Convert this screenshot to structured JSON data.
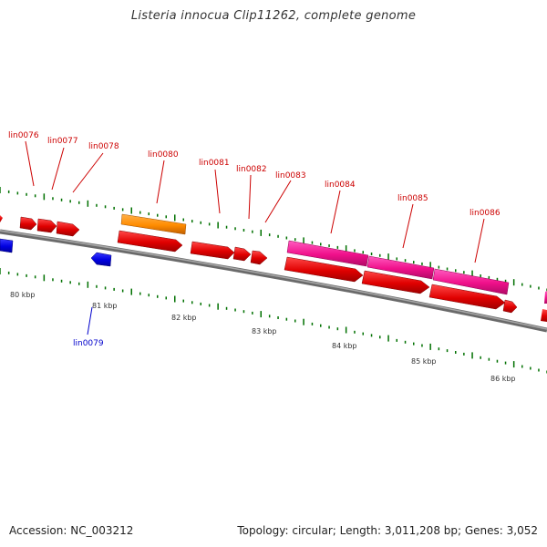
{
  "title": "Listeria innocua Clip11262, complete genome",
  "footer": {
    "accession": "Accession: NC_003212",
    "summary": "Topology: circular; Length: 3,011,208 bp; Genes: 3,052"
  },
  "colors": {
    "backbone": "#808080",
    "tick": "#007000",
    "forward_gene": "#ff0000",
    "reverse_gene": "#0000ff",
    "highlight_pink": "#ff1493",
    "highlight_orange": "#ff8c00",
    "label_red": "#cc0000",
    "label_blue": "#0000cc"
  },
  "kbp_ticks": [
    "80 kbp",
    "81 kbp",
    "82 kbp",
    "83 kbp",
    "84 kbp",
    "85 kbp",
    "86 kbp"
  ],
  "gene_labels": [
    {
      "name": "lin0076",
      "strand": "forward"
    },
    {
      "name": "lin0077",
      "strand": "forward"
    },
    {
      "name": "lin0078",
      "strand": "forward"
    },
    {
      "name": "lin0080",
      "strand": "forward"
    },
    {
      "name": "lin0081",
      "strand": "forward"
    },
    {
      "name": "lin0082",
      "strand": "forward"
    },
    {
      "name": "lin0083",
      "strand": "forward"
    },
    {
      "name": "lin0084",
      "strand": "forward"
    },
    {
      "name": "lin0085",
      "strand": "forward"
    },
    {
      "name": "lin0086",
      "strand": "forward"
    },
    {
      "name": "lin0079",
      "strand": "reverse"
    }
  ]
}
